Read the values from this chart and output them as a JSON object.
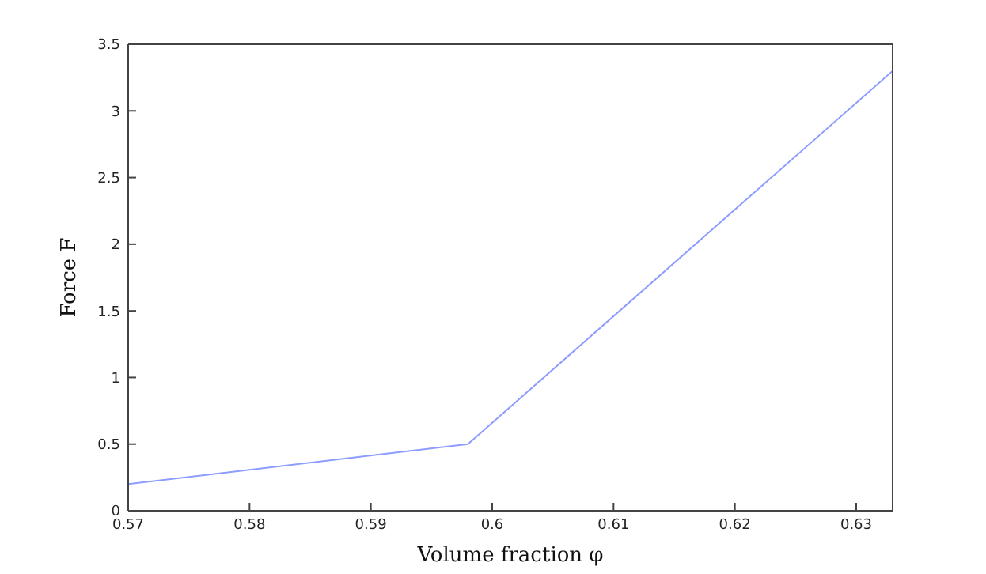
{
  "chart_data": {
    "type": "line",
    "xlabel": "Volume fraction φ",
    "ylabel": "Force F",
    "x": [
      0.57,
      0.598,
      0.633
    ],
    "series": [
      {
        "color": "#8c9cff",
        "values": [
          0.2,
          0.5,
          3.3
        ]
      }
    ],
    "xlim": [
      0.57,
      0.633
    ],
    "xticks": [
      {
        "value": 0.57,
        "label": "0.57"
      },
      {
        "value": 0.58,
        "label": "0.58"
      },
      {
        "value": 0.59,
        "label": "0.59"
      },
      {
        "value": 0.6,
        "label": "0.6"
      },
      {
        "value": 0.61,
        "label": "0.61"
      },
      {
        "value": 0.62,
        "label": "0.62"
      },
      {
        "value": 0.63,
        "label": "0.63"
      }
    ],
    "ylim": [
      0,
      3.5
    ],
    "yticks": [
      0,
      0.5,
      1,
      1.5,
      2,
      2.5,
      3,
      3.5
    ],
    "grid": false,
    "legend": false,
    "marker": "none",
    "line_style": "solid"
  }
}
